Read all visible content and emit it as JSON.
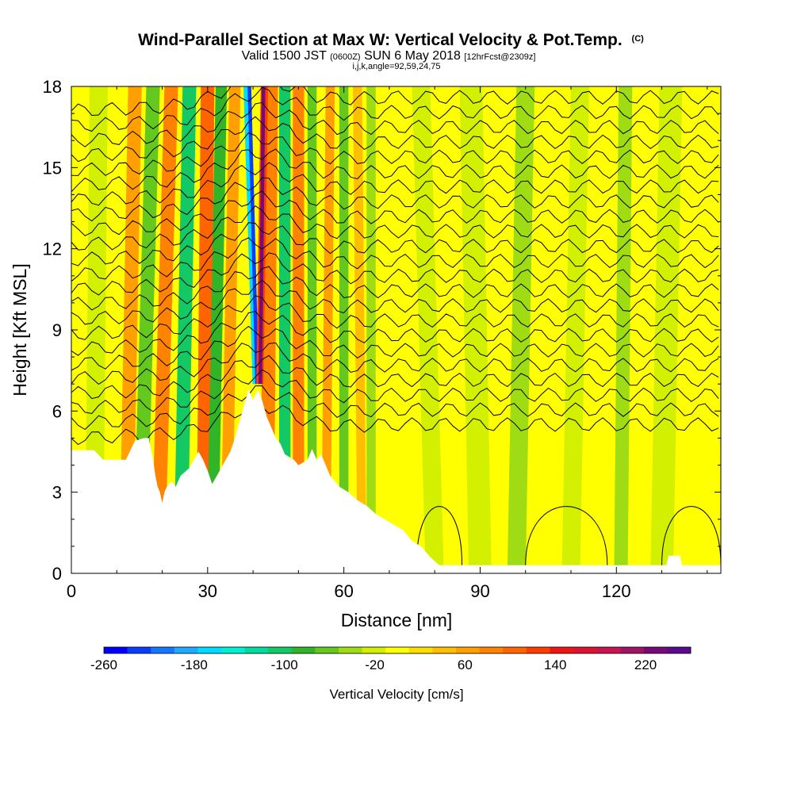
{
  "title": {
    "main": "Wind-Parallel Section at Max W: Vertical Velocity & Pot.Temp.",
    "copyright": "(C)",
    "valid_prefix": "Valid 1500 JST",
    "valid_utc": "(0600Z)",
    "valid_date": "SUN 6 May 2018",
    "forecast": "[12hrFcst@2309z]",
    "params": "i,j,k,angle=92,59,24,75"
  },
  "chart_data": {
    "type": "heatmap",
    "xlabel": "Distance [nm]",
    "ylabel": "Height [Kft MSL]",
    "xlim": [
      0,
      143
    ],
    "ylim": [
      0,
      18
    ],
    "x_ticks": [
      0,
      30,
      60,
      90,
      120
    ],
    "y_ticks": [
      0,
      3,
      6,
      9,
      12,
      15,
      18
    ],
    "colorbar": {
      "title": "Vertical Velocity [cm/s]",
      "min": -260,
      "max": 260,
      "step": 20,
      "tick_values": [
        -260,
        -180,
        -100,
        -20,
        60,
        140,
        220
      ],
      "colors": [
        "#0000ff",
        "#0a3cff",
        "#1478ff",
        "#1eaaff",
        "#00dcff",
        "#00f0d2",
        "#00dca0",
        "#14c864",
        "#32b428",
        "#64c81e",
        "#a0dc14",
        "#d2f000",
        "#ffff00",
        "#ffdc00",
        "#ffbe00",
        "#ffa000",
        "#ff8200",
        "#ff6400",
        "#ff3c00",
        "#f01414",
        "#dc1432",
        "#c81450",
        "#a01464",
        "#780a78",
        "#5a0a8c"
      ]
    },
    "terrain_kft": [
      [
        0,
        4.55
      ],
      [
        5,
        4.55
      ],
      [
        7,
        4.2
      ],
      [
        12,
        4.2
      ],
      [
        14,
        4.9
      ],
      [
        16,
        5.0
      ],
      [
        17,
        5.0
      ],
      [
        17.5,
        4.6
      ],
      [
        18,
        4.2
      ],
      [
        18.5,
        3.6
      ],
      [
        19,
        3.2
      ],
      [
        19.5,
        3.0
      ],
      [
        20,
        2.6
      ],
      [
        20.5,
        3.0
      ],
      [
        21,
        3.2
      ],
      [
        22,
        3.4
      ],
      [
        23,
        3.2
      ],
      [
        24,
        3.6
      ],
      [
        26,
        3.9
      ],
      [
        27,
        4.2
      ],
      [
        28,
        4.5
      ],
      [
        29,
        4.2
      ],
      [
        30,
        3.8
      ],
      [
        31,
        3.3
      ],
      [
        32,
        3.6
      ],
      [
        33,
        3.9
      ],
      [
        34,
        4.2
      ],
      [
        35,
        4.5
      ],
      [
        36,
        5.0
      ],
      [
        37,
        5.6
      ],
      [
        38,
        6.2
      ],
      [
        39,
        6.8
      ],
      [
        40,
        6.4
      ],
      [
        41,
        6.8
      ],
      [
        42,
        6.4
      ],
      [
        43,
        5.8
      ],
      [
        44,
        5.4
      ],
      [
        45,
        5.0
      ],
      [
        46,
        4.8
      ],
      [
        47,
        4.4
      ],
      [
        49,
        4.2
      ],
      [
        50,
        4.0
      ],
      [
        52,
        4.2
      ],
      [
        53,
        4.6
      ],
      [
        54,
        4.2
      ],
      [
        55,
        4.4
      ],
      [
        56,
        4.0
      ],
      [
        57,
        3.6
      ],
      [
        59,
        3.2
      ],
      [
        61,
        3.0
      ],
      [
        63,
        2.7
      ],
      [
        65,
        2.5
      ],
      [
        67,
        2.2
      ],
      [
        69,
        2.0
      ],
      [
        71,
        1.8
      ],
      [
        73,
        1.6
      ],
      [
        75,
        1.2
      ],
      [
        77,
        1.0
      ],
      [
        79,
        0.6
      ],
      [
        81,
        0.3
      ],
      [
        131,
        0.3
      ],
      [
        131.5,
        0.65
      ],
      [
        134,
        0.65
      ],
      [
        134.5,
        0.3
      ],
      [
        143,
        0.3
      ]
    ]
  }
}
